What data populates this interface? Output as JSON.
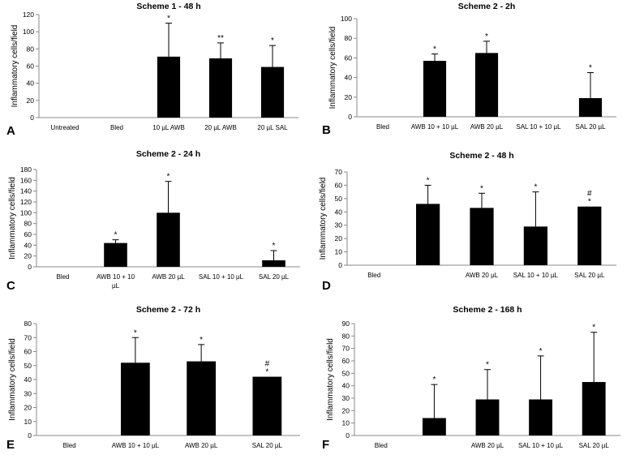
{
  "figure": {
    "ylabel": "Inflammatory cells/field"
  },
  "chart_data": [
    {
      "type": "bar",
      "panel_label": "A",
      "title": "Scheme 1 - 48 h",
      "ylabel": "Inflammatory cells/field",
      "ylim": [
        0,
        120
      ],
      "yticks": [
        0,
        20,
        40,
        60,
        80,
        100,
        120
      ],
      "categories": [
        [
          "Untreated"
        ],
        [
          "Bled"
        ],
        [
          "10 µL AWB"
        ],
        [
          "20 µL AWB"
        ],
        [
          "20 µL SAL"
        ]
      ],
      "values": [
        null,
        null,
        71,
        69,
        59
      ],
      "errors": [
        null,
        null,
        39,
        18,
        25
      ],
      "annotations": [
        "",
        "",
        "*",
        "**",
        "*"
      ]
    },
    {
      "type": "bar",
      "panel_label": "B",
      "title": "Scheme 2 - 2h",
      "ylabel": "Inflammatory cells/field",
      "ylim": [
        0,
        100
      ],
      "yticks": [
        0,
        20,
        40,
        60,
        80,
        100
      ],
      "categories": [
        [
          "Bled"
        ],
        [
          "AWB 10 + 10 µL"
        ],
        [
          "AWB 20 µL"
        ],
        [
          "SAL 10 + 10 µL"
        ],
        [
          "SAL 20 µL"
        ]
      ],
      "values": [
        null,
        57,
        65,
        null,
        19
      ],
      "errors": [
        null,
        7,
        12,
        null,
        26
      ],
      "annotations": [
        "",
        "*",
        "*",
        "",
        "*"
      ]
    },
    {
      "type": "bar",
      "panel_label": "C",
      "title": "Scheme 2 - 24 h",
      "ylabel": "Inflammatory cells/field",
      "ylim": [
        0,
        180
      ],
      "yticks": [
        0,
        20,
        40,
        60,
        80,
        100,
        120,
        140,
        160,
        180
      ],
      "categories": [
        [
          "Bled"
        ],
        [
          "AWB 10 + 10",
          "µL"
        ],
        [
          "AWB 20 µL"
        ],
        [
          "SAL 10 + 10 µL"
        ],
        [
          "SAL 20 µL"
        ]
      ],
      "values": [
        null,
        44,
        100,
        null,
        12
      ],
      "errors": [
        null,
        6,
        58,
        null,
        18
      ],
      "annotations": [
        "",
        "*",
        "*",
        "",
        "*"
      ]
    },
    {
      "type": "bar",
      "panel_label": "D",
      "title": "Scheme 2 - 48 h",
      "ylabel": "Inflammatory cells/field",
      "ylim": [
        0,
        70
      ],
      "yticks": [
        0,
        10,
        20,
        30,
        40,
        50,
        60,
        70
      ],
      "categories": [
        [
          "Bled"
        ],
        [
          ""
        ],
        [
          "AWB 20 µL"
        ],
        [
          "SAL 10 + 10 µL"
        ],
        [
          "SAL 20 µL"
        ]
      ],
      "values": [
        null,
        46,
        43,
        29,
        44
      ],
      "errors": [
        null,
        14,
        11,
        26,
        0
      ],
      "annotations": [
        "",
        "*",
        "*",
        "*",
        "#\n*"
      ]
    },
    {
      "type": "bar",
      "panel_label": "E",
      "title": "Scheme 2 - 72 h",
      "ylabel": "Inflammatory cells/field",
      "ylim": [
        0,
        80
      ],
      "yticks": [
        0,
        10,
        20,
        30,
        40,
        50,
        60,
        70,
        80
      ],
      "categories": [
        [
          "Bled"
        ],
        [
          "AWB 10 + 10 µL"
        ],
        [
          "AWB 20 µL"
        ],
        [
          "SAL 20 µL"
        ]
      ],
      "values": [
        null,
        52,
        53,
        42
      ],
      "errors": [
        null,
        18,
        12,
        0
      ],
      "annotations": [
        "",
        "*",
        "*",
        "#\n*"
      ]
    },
    {
      "type": "bar",
      "panel_label": "F",
      "title": "Scheme 2 - 168 h",
      "ylabel": "Inflammatory cells/field",
      "ylim": [
        0,
        90
      ],
      "yticks": [
        0,
        10,
        20,
        30,
        40,
        50,
        60,
        70,
        80,
        90
      ],
      "categories": [
        [
          "Bled"
        ],
        [
          ""
        ],
        [
          "AWB 20 µL"
        ],
        [
          "SAL 10 + 10 µL"
        ],
        [
          "SAL 20 µL"
        ]
      ],
      "values": [
        null,
        14,
        29,
        29,
        43
      ],
      "errors": [
        null,
        27,
        24,
        35,
        40
      ],
      "annotations": [
        "",
        "*",
        "*",
        "*",
        "*"
      ]
    }
  ]
}
